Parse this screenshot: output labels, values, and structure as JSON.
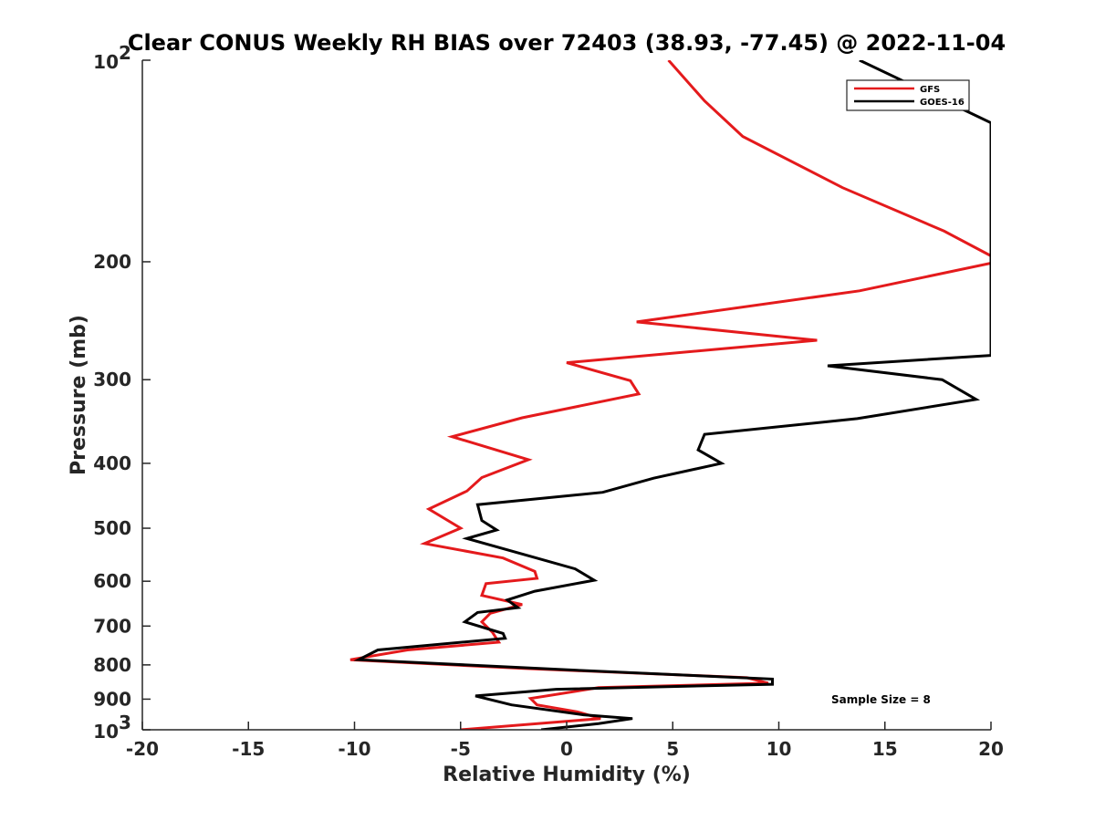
{
  "chart_data": {
    "type": "line",
    "title": "Clear CONUS Weekly RH BIAS over 72403 (38.93, -77.45) @ 2022-11-04",
    "xlabel": "Relative Humidity (%)",
    "ylabel": "Pressure (mb)",
    "xlim": [
      -20,
      20
    ],
    "ylim": [
      100,
      1000
    ],
    "y_scale": "log",
    "y_reversed": true,
    "grid": false,
    "legend_position": "top-right",
    "x_ticks": [
      "-20",
      "-15",
      "-10",
      "-5",
      "0",
      "5",
      "10",
      "15",
      "20"
    ],
    "y_ticks": [
      {
        "value": 100,
        "base": "10",
        "exp": "2"
      },
      {
        "value": 200,
        "label": "200"
      },
      {
        "value": 300,
        "label": "300"
      },
      {
        "value": 400,
        "label": "400"
      },
      {
        "value": 500,
        "label": "500"
      },
      {
        "value": 600,
        "label": "600"
      },
      {
        "value": 700,
        "label": "700"
      },
      {
        "value": 800,
        "label": "800"
      },
      {
        "value": 900,
        "label": "900"
      },
      {
        "value": 1000,
        "base": "10",
        "exp": "3"
      }
    ],
    "series": [
      {
        "name": "GFS",
        "color": "#e41a1c",
        "points": [
          [
            4.8,
            100
          ],
          [
            6.5,
            115
          ],
          [
            8.3,
            130
          ],
          [
            13.0,
            155
          ],
          [
            17.8,
            180
          ],
          [
            20.0,
            196
          ],
          [
            20.0,
            201
          ],
          [
            13.8,
            221
          ],
          [
            3.3,
            246
          ],
          [
            11.8,
            262
          ],
          [
            0.0,
            283
          ],
          [
            3.0,
            301
          ],
          [
            3.4,
            315
          ],
          [
            -2.1,
            342
          ],
          [
            -5.4,
            365
          ],
          [
            -1.8,
            395
          ],
          [
            -4.0,
            420
          ],
          [
            -4.7,
            440
          ],
          [
            -6.5,
            468
          ],
          [
            -5.0,
            500
          ],
          [
            -6.7,
            527
          ],
          [
            -3.0,
            554
          ],
          [
            -1.5,
            580
          ],
          [
            -1.4,
            594
          ],
          [
            -3.8,
            605
          ],
          [
            -4.0,
            630
          ],
          [
            -2.1,
            650
          ],
          [
            -3.6,
            670
          ],
          [
            -4.0,
            690
          ],
          [
            -3.5,
            715
          ],
          [
            -3.2,
            740
          ],
          [
            -7.5,
            760
          ],
          [
            -10.2,
            786
          ],
          [
            -2.0,
            810
          ],
          [
            8.5,
            836
          ],
          [
            9.5,
            852
          ],
          [
            1.5,
            865
          ],
          [
            -1.7,
            898
          ],
          [
            -1.4,
            918
          ],
          [
            0.5,
            940
          ],
          [
            1.6,
            962
          ],
          [
            -5.0,
            1000
          ]
        ]
      },
      {
        "name": "GOES-16",
        "color": "#000000",
        "points": [
          [
            13.8,
            100
          ],
          [
            20.0,
            124
          ],
          [
            20.0,
            276
          ],
          [
            12.3,
            286
          ],
          [
            17.7,
            300
          ],
          [
            19.3,
            321
          ],
          [
            13.7,
            343
          ],
          [
            6.5,
            362
          ],
          [
            6.2,
            382
          ],
          [
            7.3,
            400
          ],
          [
            4.1,
            421
          ],
          [
            1.7,
            442
          ],
          [
            -4.2,
            461
          ],
          [
            -4.0,
            487
          ],
          [
            -3.3,
            503
          ],
          [
            -4.7,
            518
          ],
          [
            -1.5,
            553
          ],
          [
            0.4,
            575
          ],
          [
            1.3,
            598
          ],
          [
            -1.5,
            621
          ],
          [
            -2.8,
            640
          ],
          [
            -2.3,
            657
          ],
          [
            -4.2,
            668
          ],
          [
            -4.8,
            690
          ],
          [
            -3.0,
            718
          ],
          [
            -2.9,
            730
          ],
          [
            -8.9,
            760
          ],
          [
            -9.8,
            786
          ],
          [
            0.5,
            815
          ],
          [
            9.7,
            840
          ],
          [
            9.7,
            855
          ],
          [
            -0.5,
            870
          ],
          [
            -4.3,
            890
          ],
          [
            -2.6,
            918
          ],
          [
            0.8,
            950
          ],
          [
            3.1,
            962
          ],
          [
            1.5,
            979
          ],
          [
            -1.2,
            1000
          ]
        ]
      }
    ],
    "annotation": "Sample Size = 8"
  }
}
